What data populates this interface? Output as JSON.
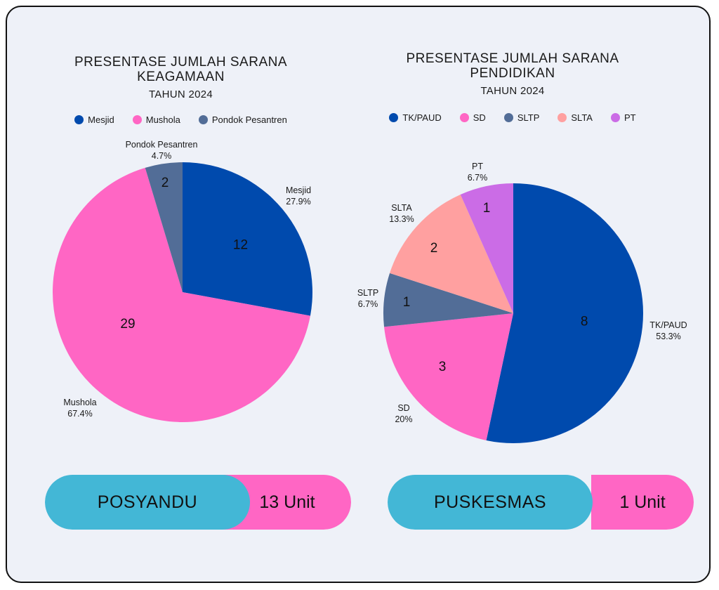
{
  "chart_data": [
    {
      "type": "pie",
      "title_line1": "PRESENTASE JUMLAH SARANA",
      "title_line2": "KEAGAMAAN",
      "subtitle": "TAHUN 2024",
      "legend_position": "top",
      "legend": [
        "Mesjid",
        "Mushola",
        "Pondok Pesantren"
      ],
      "slices": [
        {
          "label": "Mesjid",
          "value": 12,
          "percent": "27.9%",
          "color": "#004aad"
        },
        {
          "label": "Mushola",
          "value": 29,
          "percent": "67.4%",
          "color": "#ff66c4"
        },
        {
          "label": "Pondok Pesantren",
          "value": 2,
          "percent": "4.7%",
          "color": "#526d97"
        }
      ]
    },
    {
      "type": "pie",
      "title_line1": "PRESENTASE JUMLAH SARANA",
      "title_line2": "PENDIDIKAN",
      "subtitle": "TAHUN 2024",
      "legend_position": "top",
      "legend": [
        "TK/PAUD",
        "SD",
        "SLTP",
        "SLTA",
        "PT"
      ],
      "slices": [
        {
          "label": "TK/PAUD",
          "value": 8,
          "percent": "53.3%",
          "color": "#004aad"
        },
        {
          "label": "SD",
          "value": 3,
          "percent": "20%",
          "color": "#ff66c4"
        },
        {
          "label": "SLTP",
          "value": 1,
          "percent": "6.7%",
          "color": "#526d97"
        },
        {
          "label": "SLTA",
          "value": 2,
          "percent": "13.3%",
          "color": "#ffa0a0"
        },
        {
          "label": "PT",
          "value": 1,
          "percent": "6.7%",
          "color": "#cb6ce6"
        }
      ]
    }
  ],
  "pills": [
    {
      "label": "POSYANDU",
      "value": "13 Unit",
      "label_color": "#43b7d6",
      "value_color": "#ff66c4"
    },
    {
      "label": "PUSKESMAS",
      "value": "1 Unit",
      "label_color": "#43b7d6",
      "value_color": "#ff66c4"
    }
  ]
}
